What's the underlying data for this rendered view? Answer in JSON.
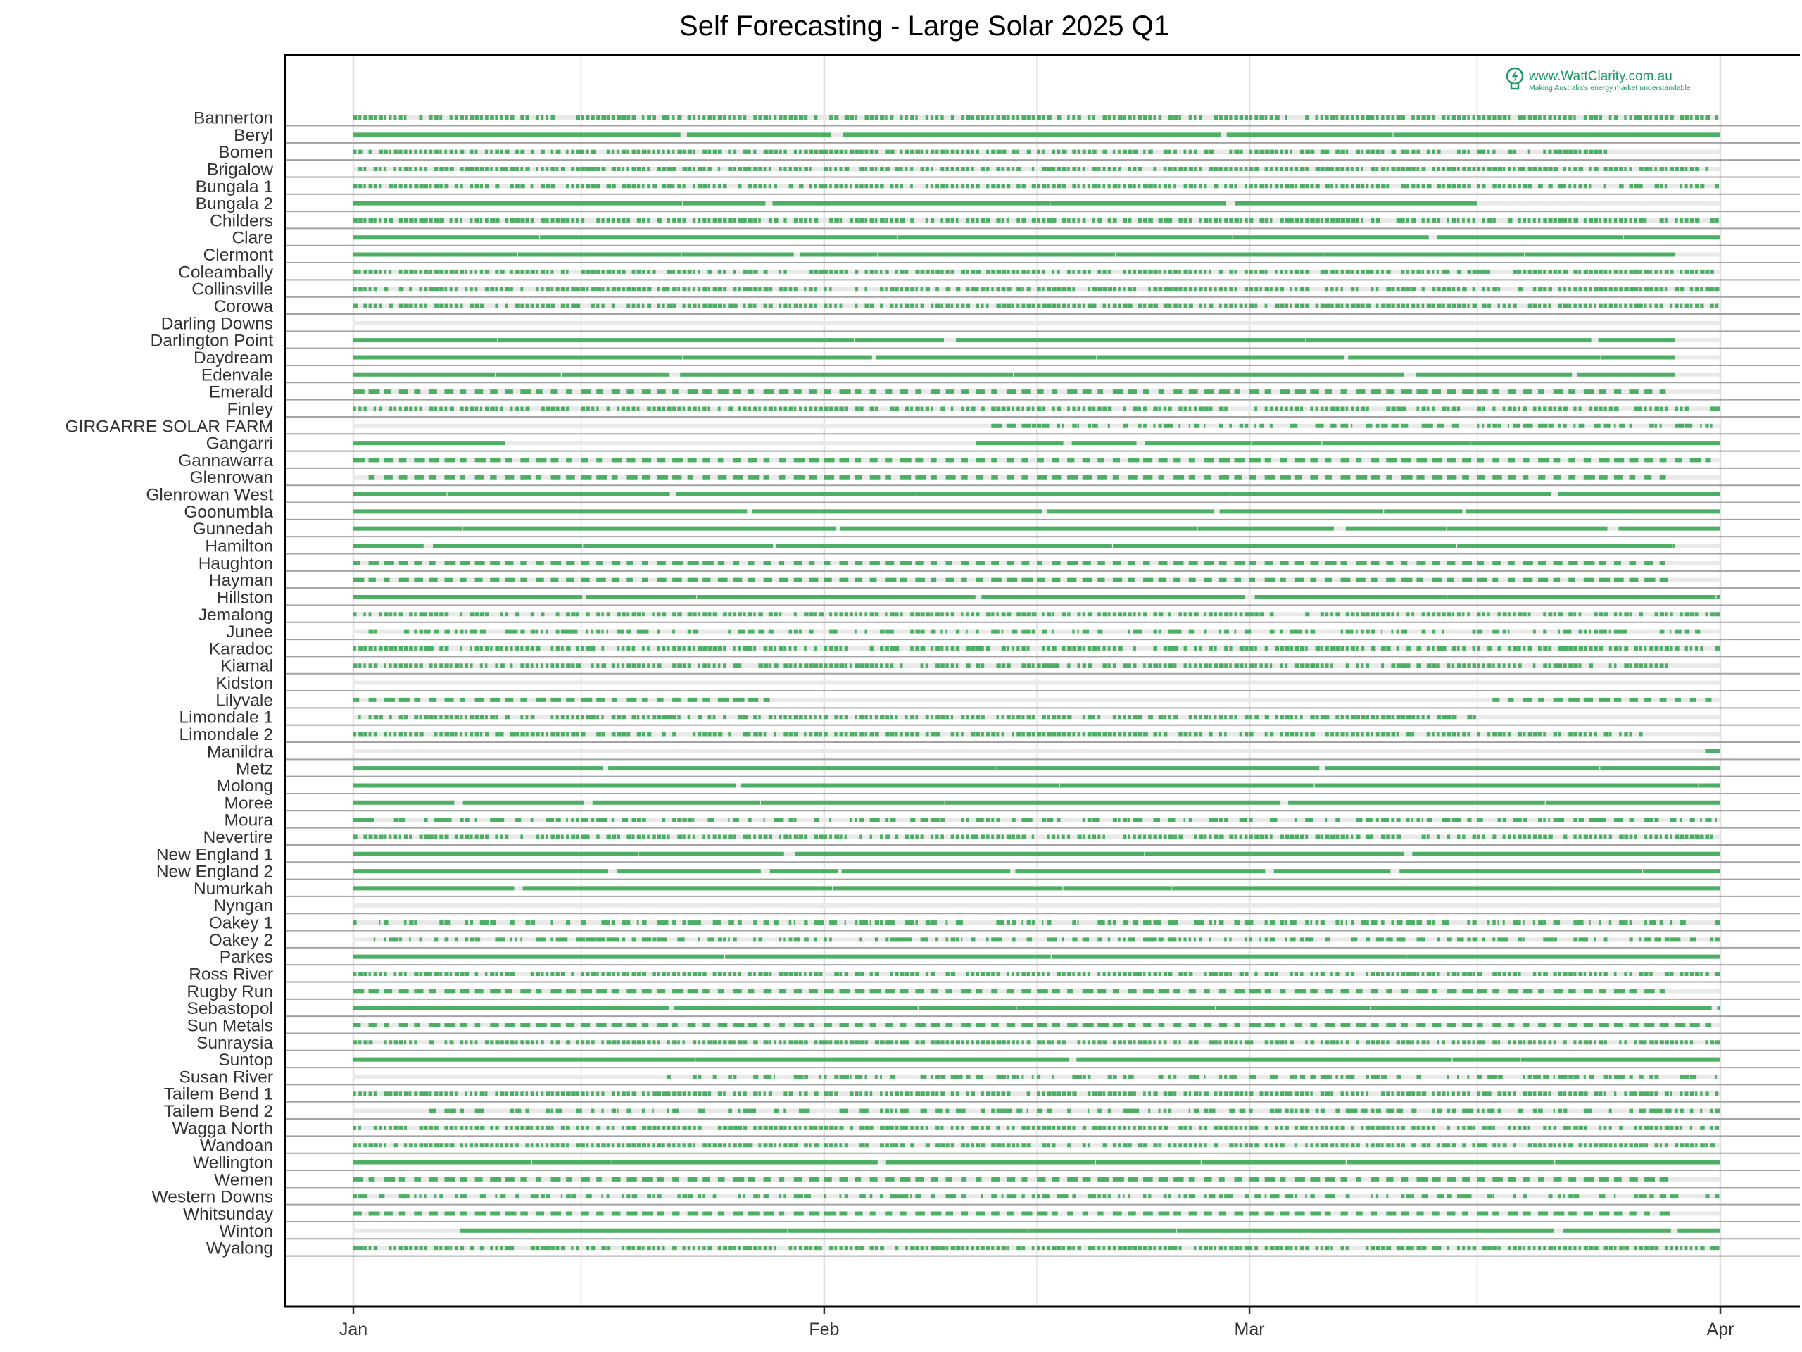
{
  "chart_data": {
    "type": "timeline",
    "title": "Self Forecasting - Large Solar 2025 Q1",
    "xlabel": "",
    "ylabel": "",
    "xlim": [
      "2025-01-01",
      "2025-04-01"
    ],
    "x_ticks": [
      "Jan",
      "Feb",
      "Mar",
      "Apr"
    ],
    "x_tick_dates": [
      "2025-01-01",
      "2025-02-01",
      "2025-03-01",
      "2025-04-01"
    ],
    "minor_grid_dates": [
      "2025-01-16",
      "2025-02-15",
      "2025-03-16"
    ],
    "grid": true,
    "colors": {
      "active": "#4caf63",
      "inactive": "#e9e9e9",
      "separator": "#a3a3a3"
    },
    "rows": [
      {
        "name": "Bannerton",
        "on_periods": [
          [
            "2025-01-01",
            "2025-04-01"
          ]
        ],
        "pattern": "dense"
      },
      {
        "name": "Beryl",
        "on_periods": [
          [
            "2025-01-01",
            "2025-04-01"
          ]
        ],
        "pattern": "solid"
      },
      {
        "name": "Bomen",
        "on_periods": [
          [
            "2025-01-01",
            "2025-03-25"
          ]
        ],
        "pattern": "dense"
      },
      {
        "name": "Brigalow",
        "on_periods": [
          [
            "2025-01-01",
            "2025-04-01"
          ]
        ],
        "pattern": "dense"
      },
      {
        "name": "Bungala 1",
        "on_periods": [
          [
            "2025-01-01",
            "2025-04-01"
          ]
        ],
        "pattern": "dense"
      },
      {
        "name": "Bungala 2",
        "on_periods": [
          [
            "2025-01-01",
            "2025-03-16"
          ]
        ],
        "pattern": "solid"
      },
      {
        "name": "Childers",
        "on_periods": [
          [
            "2025-01-01",
            "2025-04-01"
          ]
        ],
        "pattern": "dense"
      },
      {
        "name": "Clare",
        "on_periods": [
          [
            "2025-01-01",
            "2025-04-01"
          ]
        ],
        "pattern": "solid"
      },
      {
        "name": "Clermont",
        "on_periods": [
          [
            "2025-01-01",
            "2025-03-29"
          ]
        ],
        "pattern": "solid"
      },
      {
        "name": "Coleambally",
        "on_periods": [
          [
            "2025-01-01",
            "2025-04-01"
          ]
        ],
        "pattern": "dense"
      },
      {
        "name": "Collinsville",
        "on_periods": [
          [
            "2025-01-01",
            "2025-04-01"
          ]
        ],
        "pattern": "dense"
      },
      {
        "name": "Corowa",
        "on_periods": [
          [
            "2025-01-01",
            "2025-04-01"
          ]
        ],
        "pattern": "dense"
      },
      {
        "name": "Darling Downs",
        "on_periods": [],
        "pattern": "none"
      },
      {
        "name": "Darlington Point",
        "on_periods": [
          [
            "2025-01-01",
            "2025-03-29"
          ]
        ],
        "pattern": "solid"
      },
      {
        "name": "Daydream",
        "on_periods": [
          [
            "2025-01-01",
            "2025-03-29"
          ]
        ],
        "pattern": "solid"
      },
      {
        "name": "Edenvale",
        "on_periods": [
          [
            "2025-01-01",
            "2025-03-29"
          ]
        ],
        "pattern": "solid"
      },
      {
        "name": "Emerald",
        "on_periods": [
          [
            "2025-01-01",
            "2025-03-29"
          ]
        ],
        "pattern": "dashed"
      },
      {
        "name": "Finley",
        "on_periods": [
          [
            "2025-01-01",
            "2025-04-01"
          ]
        ],
        "pattern": "dense"
      },
      {
        "name": "GIRGARRE SOLAR FARM",
        "on_periods": [
          [
            "2025-02-12",
            "2025-04-01"
          ]
        ],
        "pattern": "sparse"
      },
      {
        "name": "Gangarri",
        "on_periods": [
          [
            "2025-01-01",
            "2025-01-11"
          ],
          [
            "2025-02-11",
            "2025-04-01"
          ]
        ],
        "pattern": "solid"
      },
      {
        "name": "Gannawarra",
        "on_periods": [
          [
            "2025-01-01",
            "2025-04-01"
          ]
        ],
        "pattern": "dashed"
      },
      {
        "name": "Glenrowan",
        "on_periods": [
          [
            "2025-01-02",
            "2025-03-29"
          ]
        ],
        "pattern": "dashed"
      },
      {
        "name": "Glenrowan West",
        "on_periods": [
          [
            "2025-01-01",
            "2025-04-01"
          ]
        ],
        "pattern": "solid"
      },
      {
        "name": "Goonumbla",
        "on_periods": [
          [
            "2025-01-01",
            "2025-04-01"
          ]
        ],
        "pattern": "solid"
      },
      {
        "name": "Gunnedah",
        "on_periods": [
          [
            "2025-01-01",
            "2025-04-01"
          ]
        ],
        "pattern": "solid"
      },
      {
        "name": "Hamilton",
        "on_periods": [
          [
            "2025-01-01",
            "2025-03-29"
          ]
        ],
        "pattern": "solid"
      },
      {
        "name": "Haughton",
        "on_periods": [
          [
            "2025-01-01",
            "2025-03-29"
          ]
        ],
        "pattern": "dashed"
      },
      {
        "name": "Hayman",
        "on_periods": [
          [
            "2025-01-01",
            "2025-03-29"
          ]
        ],
        "pattern": "dashed"
      },
      {
        "name": "Hillston",
        "on_periods": [
          [
            "2025-01-01",
            "2025-04-01"
          ]
        ],
        "pattern": "solid"
      },
      {
        "name": "Jemalong",
        "on_periods": [
          [
            "2025-01-01",
            "2025-04-01"
          ]
        ],
        "pattern": "dense"
      },
      {
        "name": "Junee",
        "on_periods": [
          [
            "2025-01-01",
            "2025-04-01"
          ]
        ],
        "pattern": "sparse"
      },
      {
        "name": "Karadoc",
        "on_periods": [
          [
            "2025-01-01",
            "2025-04-01"
          ]
        ],
        "pattern": "dense"
      },
      {
        "name": "Kiamal",
        "on_periods": [
          [
            "2025-01-01",
            "2025-03-29"
          ]
        ],
        "pattern": "dense"
      },
      {
        "name": "Kidston",
        "on_periods": [],
        "pattern": "none"
      },
      {
        "name": "Lilyvale",
        "on_periods": [
          [
            "2025-01-01",
            "2025-01-29"
          ],
          [
            "2025-03-17",
            "2025-04-01"
          ]
        ],
        "pattern": "dashed"
      },
      {
        "name": "Limondale 1",
        "on_periods": [
          [
            "2025-01-01",
            "2025-03-16"
          ]
        ],
        "pattern": "dense"
      },
      {
        "name": "Limondale 2",
        "on_periods": [
          [
            "2025-01-01",
            "2025-03-27"
          ]
        ],
        "pattern": "dense"
      },
      {
        "name": "Manildra",
        "on_periods": [
          [
            "2025-03-31",
            "2025-04-01"
          ]
        ],
        "pattern": "solid"
      },
      {
        "name": "Metz",
        "on_periods": [
          [
            "2025-01-01",
            "2025-04-01"
          ]
        ],
        "pattern": "solid"
      },
      {
        "name": "Molong",
        "on_periods": [
          [
            "2025-01-01",
            "2025-04-01"
          ]
        ],
        "pattern": "solid"
      },
      {
        "name": "Moree",
        "on_periods": [
          [
            "2025-01-01",
            "2025-04-01"
          ]
        ],
        "pattern": "solid"
      },
      {
        "name": "Moura",
        "on_periods": [
          [
            "2025-01-01",
            "2025-04-01"
          ]
        ],
        "pattern": "sparse"
      },
      {
        "name": "Nevertire",
        "on_periods": [
          [
            "2025-01-01",
            "2025-04-01"
          ]
        ],
        "pattern": "dense"
      },
      {
        "name": "New England 1",
        "on_periods": [
          [
            "2025-01-01",
            "2025-04-01"
          ]
        ],
        "pattern": "solid"
      },
      {
        "name": "New England 2",
        "on_periods": [
          [
            "2025-01-01",
            "2025-04-01"
          ]
        ],
        "pattern": "solid"
      },
      {
        "name": "Numurkah",
        "on_periods": [
          [
            "2025-01-01",
            "2025-04-01"
          ]
        ],
        "pattern": "solid"
      },
      {
        "name": "Nyngan",
        "on_periods": [],
        "pattern": "none"
      },
      {
        "name": "Oakey 1",
        "on_periods": [
          [
            "2025-01-01",
            "2025-04-01"
          ]
        ],
        "pattern": "sparse"
      },
      {
        "name": "Oakey 2",
        "on_periods": [
          [
            "2025-01-01",
            "2025-04-01"
          ]
        ],
        "pattern": "sparse"
      },
      {
        "name": "Parkes",
        "on_periods": [
          [
            "2025-01-01",
            "2025-04-01"
          ]
        ],
        "pattern": "solid"
      },
      {
        "name": "Ross River",
        "on_periods": [
          [
            "2025-01-01",
            "2025-04-01"
          ]
        ],
        "pattern": "dense"
      },
      {
        "name": "Rugby Run",
        "on_periods": [
          [
            "2025-01-01",
            "2025-03-29"
          ]
        ],
        "pattern": "dashed"
      },
      {
        "name": "Sebastopol",
        "on_periods": [
          [
            "2025-01-01",
            "2025-04-01"
          ]
        ],
        "pattern": "solid"
      },
      {
        "name": "Sun Metals",
        "on_periods": [
          [
            "2025-01-01",
            "2025-04-01"
          ]
        ],
        "pattern": "dashed"
      },
      {
        "name": "Sunraysia",
        "on_periods": [
          [
            "2025-01-01",
            "2025-04-01"
          ]
        ],
        "pattern": "dense"
      },
      {
        "name": "Suntop",
        "on_periods": [
          [
            "2025-01-01",
            "2025-04-01"
          ]
        ],
        "pattern": "solid"
      },
      {
        "name": "Susan River",
        "on_periods": [
          [
            "2025-01-21",
            "2025-04-01"
          ]
        ],
        "pattern": "sparse"
      },
      {
        "name": "Tailem Bend 1",
        "on_periods": [
          [
            "2025-01-01",
            "2025-04-01"
          ]
        ],
        "pattern": "dense"
      },
      {
        "name": "Tailem Bend 2",
        "on_periods": [
          [
            "2025-01-06",
            "2025-04-01"
          ]
        ],
        "pattern": "sparse"
      },
      {
        "name": "Wagga North",
        "on_periods": [
          [
            "2025-01-01",
            "2025-04-01"
          ]
        ],
        "pattern": "dense"
      },
      {
        "name": "Wandoan",
        "on_periods": [
          [
            "2025-01-01",
            "2025-04-01"
          ]
        ],
        "pattern": "dense"
      },
      {
        "name": "Wellington",
        "on_periods": [
          [
            "2025-01-01",
            "2025-04-01"
          ]
        ],
        "pattern": "solid"
      },
      {
        "name": "Wemen",
        "on_periods": [
          [
            "2025-01-01",
            "2025-03-29"
          ]
        ],
        "pattern": "dashed"
      },
      {
        "name": "Western Downs",
        "on_periods": [
          [
            "2025-01-01",
            "2025-04-01"
          ]
        ],
        "pattern": "sparse"
      },
      {
        "name": "Whitsunday",
        "on_periods": [
          [
            "2025-01-01",
            "2025-03-29"
          ]
        ],
        "pattern": "dashed"
      },
      {
        "name": "Winton",
        "on_periods": [
          [
            "2025-01-08",
            "2025-04-01"
          ]
        ],
        "pattern": "solid"
      },
      {
        "name": "Wyalong",
        "on_periods": [
          [
            "2025-01-01",
            "2025-04-01"
          ]
        ],
        "pattern": "dense"
      }
    ]
  },
  "watermark": {
    "url": "www.WattClarity.com.au",
    "tagline": "Making Australia's energy market understandable",
    "icon": "lightbulb-bolt-icon"
  }
}
